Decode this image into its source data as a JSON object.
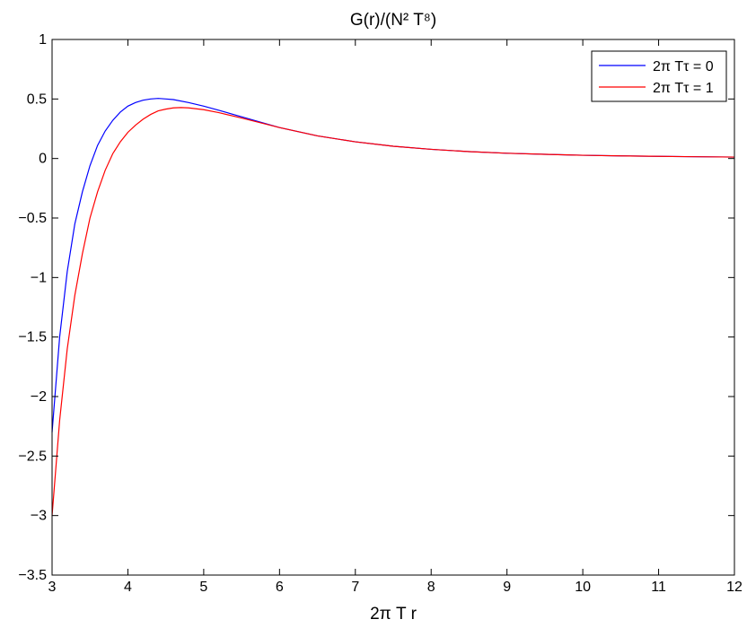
{
  "chart_data": {
    "type": "line",
    "title": "G(r)/(N² T⁸)",
    "xlabel": "2π T r",
    "ylabel": "",
    "xlim": [
      3,
      12
    ],
    "ylim": [
      -3.5,
      1
    ],
    "xticks": [
      3,
      4,
      5,
      6,
      7,
      8,
      9,
      10,
      11,
      12
    ],
    "xtick_labels": [
      "3",
      "4",
      "5",
      "6",
      "7",
      "8",
      "9",
      "10",
      "11",
      "12"
    ],
    "yticks": [
      1,
      0.5,
      0,
      -0.5,
      -1,
      -1.5,
      -2,
      -2.5,
      -3,
      -3.5
    ],
    "ytick_labels": [
      "1",
      "0.5",
      "0",
      "−0.5",
      "−1",
      "−1.5",
      "−2",
      "−2.5",
      "−3",
      "−3.5"
    ],
    "grid": false,
    "legend_position": "top-right",
    "series": [
      {
        "name": "2π Tτ = 0",
        "color": "#0000ff",
        "points": [
          [
            3.0,
            -2.3
          ],
          [
            3.1,
            -1.5
          ],
          [
            3.2,
            -0.95
          ],
          [
            3.3,
            -0.55
          ],
          [
            3.4,
            -0.28
          ],
          [
            3.5,
            -0.06
          ],
          [
            3.6,
            0.11
          ],
          [
            3.7,
            0.23
          ],
          [
            3.8,
            0.32
          ],
          [
            3.9,
            0.39
          ],
          [
            4.0,
            0.44
          ],
          [
            4.1,
            0.47
          ],
          [
            4.2,
            0.49
          ],
          [
            4.3,
            0.5
          ],
          [
            4.4,
            0.505
          ],
          [
            4.5,
            0.5
          ],
          [
            4.6,
            0.495
          ],
          [
            4.8,
            0.47
          ],
          [
            5.0,
            0.44
          ],
          [
            5.2,
            0.405
          ],
          [
            5.5,
            0.35
          ],
          [
            6.0,
            0.26
          ],
          [
            6.5,
            0.19
          ],
          [
            7.0,
            0.14
          ],
          [
            7.5,
            0.103
          ],
          [
            8.0,
            0.077
          ],
          [
            8.5,
            0.058
          ],
          [
            9.0,
            0.044
          ],
          [
            9.5,
            0.035
          ],
          [
            10.0,
            0.027
          ],
          [
            10.5,
            0.022
          ],
          [
            11.0,
            0.018
          ],
          [
            11.5,
            0.015
          ],
          [
            12.0,
            0.012
          ]
        ]
      },
      {
        "name": "2π Tτ = 1",
        "color": "#ff0000",
        "points": [
          [
            3.0,
            -3.0
          ],
          [
            3.1,
            -2.2
          ],
          [
            3.2,
            -1.6
          ],
          [
            3.3,
            -1.15
          ],
          [
            3.4,
            -0.8
          ],
          [
            3.5,
            -0.5
          ],
          [
            3.6,
            -0.28
          ],
          [
            3.7,
            -0.1
          ],
          [
            3.8,
            0.04
          ],
          [
            3.9,
            0.14
          ],
          [
            4.0,
            0.22
          ],
          [
            4.1,
            0.28
          ],
          [
            4.2,
            0.33
          ],
          [
            4.3,
            0.37
          ],
          [
            4.4,
            0.4
          ],
          [
            4.5,
            0.415
          ],
          [
            4.6,
            0.425
          ],
          [
            4.7,
            0.428
          ],
          [
            4.8,
            0.425
          ],
          [
            5.0,
            0.41
          ],
          [
            5.2,
            0.385
          ],
          [
            5.5,
            0.34
          ],
          [
            6.0,
            0.26
          ],
          [
            6.5,
            0.19
          ],
          [
            7.0,
            0.14
          ],
          [
            7.5,
            0.103
          ],
          [
            8.0,
            0.077
          ],
          [
            8.5,
            0.058
          ],
          [
            9.0,
            0.044
          ],
          [
            9.5,
            0.035
          ],
          [
            10.0,
            0.027
          ],
          [
            10.5,
            0.022
          ],
          [
            11.0,
            0.018
          ],
          [
            11.5,
            0.015
          ],
          [
            12.0,
            0.012
          ]
        ]
      }
    ]
  }
}
